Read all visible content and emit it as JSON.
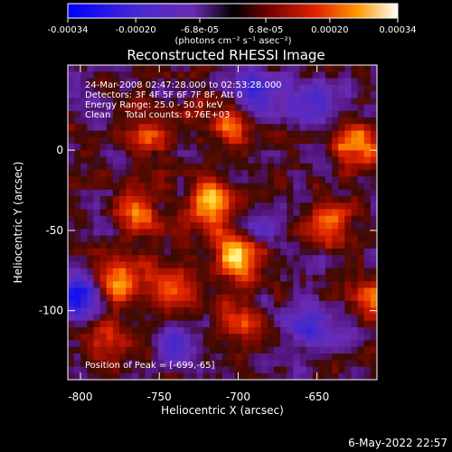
{
  "colorbar": {
    "tick_labels": [
      "-0.00034",
      "-0.00020",
      "-6.8e-05",
      "6.8e-05",
      "0.00020",
      "0.00034"
    ],
    "tick_values": [
      -0.00034,
      -0.0002,
      -6.8e-05,
      6.8e-05,
      0.0002,
      0.00034
    ],
    "range": [
      -0.00034,
      0.00034
    ],
    "units_text": "(photons cm⁻² s⁻¹ asec⁻²)"
  },
  "chart_data": {
    "type": "heatmap",
    "title": "Reconstructed RHESSI Image",
    "xlabel": "Heliocentric X (arcsec)",
    "ylabel": "Heliocentric Y (arcsec)",
    "xlim": [
      -808,
      -612
    ],
    "ylim": [
      -143,
      53
    ],
    "xticks": [
      -800,
      -750,
      -700,
      -650
    ],
    "yticks": [
      0,
      -50,
      -100
    ],
    "zlim": [
      -0.00034,
      0.00034
    ],
    "colormap": "hot-on-blue",
    "colors": {
      "low": "#0000ff",
      "mid_low": "#6a2bb3",
      "mid": "#3a0a00",
      "high": "#ff6000",
      "max": "#ffffcc"
    },
    "annotations": [
      "24-Mar-2008 02:47:28.000 to 02:53:28.000",
      "Detectors: 3F 4F 5F 6F 7F 8F, Att 0",
      "Energy Range: 25.0 - 50.0 keV",
      "Clean     Total counts: 9.76E+03"
    ],
    "peak_label": "Position of Peak = [-699,-65]",
    "peak_position": [
      -699,
      -65
    ],
    "hot_regions": [
      {
        "x": -700,
        "y": -65,
        "level": 0.00034
      },
      {
        "x": -718,
        "y": -35,
        "level": 0.0003
      },
      {
        "x": -765,
        "y": -40,
        "level": 0.00026
      },
      {
        "x": -778,
        "y": -80,
        "level": 0.00026
      },
      {
        "x": -745,
        "y": -85,
        "level": 0.00022
      },
      {
        "x": -705,
        "y": 15,
        "level": 0.0002
      },
      {
        "x": -760,
        "y": 5,
        "level": 0.00018
      },
      {
        "x": -640,
        "y": -45,
        "level": 0.0002
      },
      {
        "x": -625,
        "y": 0,
        "level": 0.00022
      },
      {
        "x": -615,
        "y": -95,
        "level": 0.0002
      },
      {
        "x": -700,
        "y": -105,
        "level": 0.00016
      },
      {
        "x": -785,
        "y": -120,
        "level": 0.00014
      }
    ],
    "cold_regions": [
      {
        "x": -690,
        "y": 35,
        "level": -0.00024
      },
      {
        "x": -800,
        "y": -90,
        "level": -0.0003
      },
      {
        "x": -650,
        "y": -110,
        "level": -0.00022
      },
      {
        "x": -655,
        "y": 30,
        "level": -0.0002
      },
      {
        "x": -740,
        "y": -125,
        "level": -0.00018
      },
      {
        "x": -690,
        "y": -50,
        "level": -0.00012
      }
    ]
  },
  "timestamp": "6-May-2022 22:57"
}
